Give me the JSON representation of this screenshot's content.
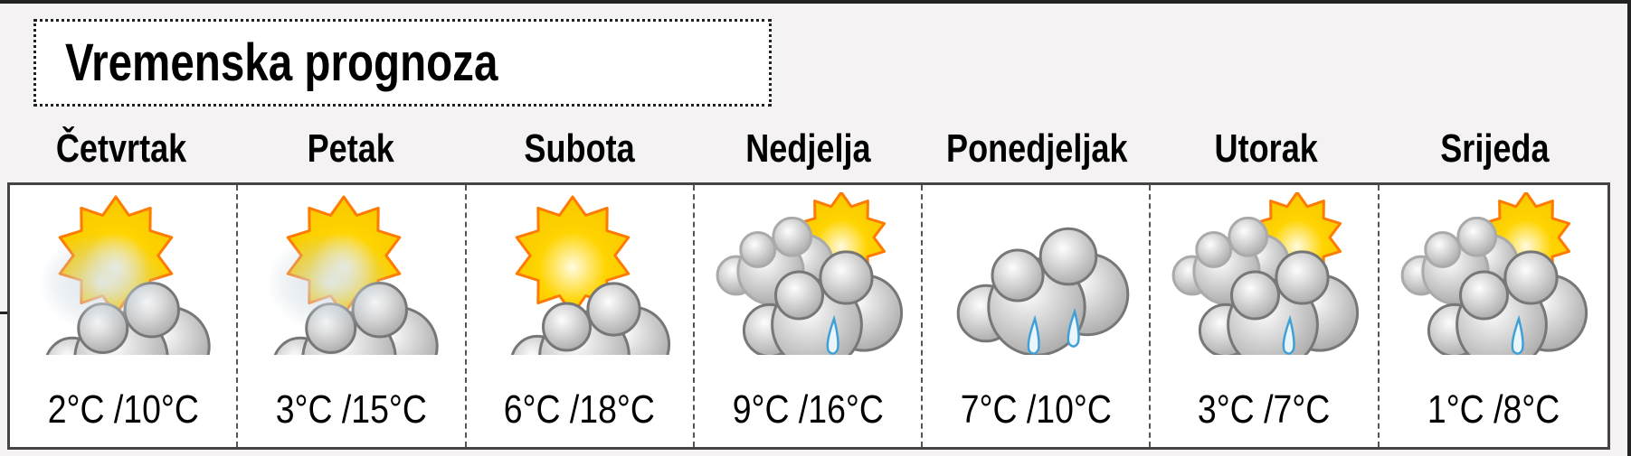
{
  "title": "Vremenska prognoza",
  "colors": {
    "sun": "#ffd400",
    "sun_edge": "#ff7a00",
    "cloud": "#e6e6e6",
    "cloud_edge": "#777777",
    "rain": "#3fa0d8",
    "fog": "#b8c8d4"
  },
  "days": [
    {
      "name": "Četvrtak",
      "temp": "2°C /10°C",
      "icon": "sun-cloud-fog-icon"
    },
    {
      "name": "Petak",
      "temp": "3°C /15°C",
      "icon": "sun-cloud-fog-icon"
    },
    {
      "name": "Subota",
      "temp": "6°C /18°C",
      "icon": "partly-cloudy-icon"
    },
    {
      "name": "Nedjelja",
      "temp": "9°C /16°C",
      "icon": "sun-clouds-rain-icon"
    },
    {
      "name": "Ponedjeljak",
      "temp": "7°C /10°C",
      "icon": "cloud-rain-icon"
    },
    {
      "name": "Utorak",
      "temp": "3°C /7°C",
      "icon": "sun-clouds-rain-icon"
    },
    {
      "name": "Srijeda",
      "temp": "1°C /8°C",
      "icon": "sun-clouds-rain-icon"
    }
  ]
}
